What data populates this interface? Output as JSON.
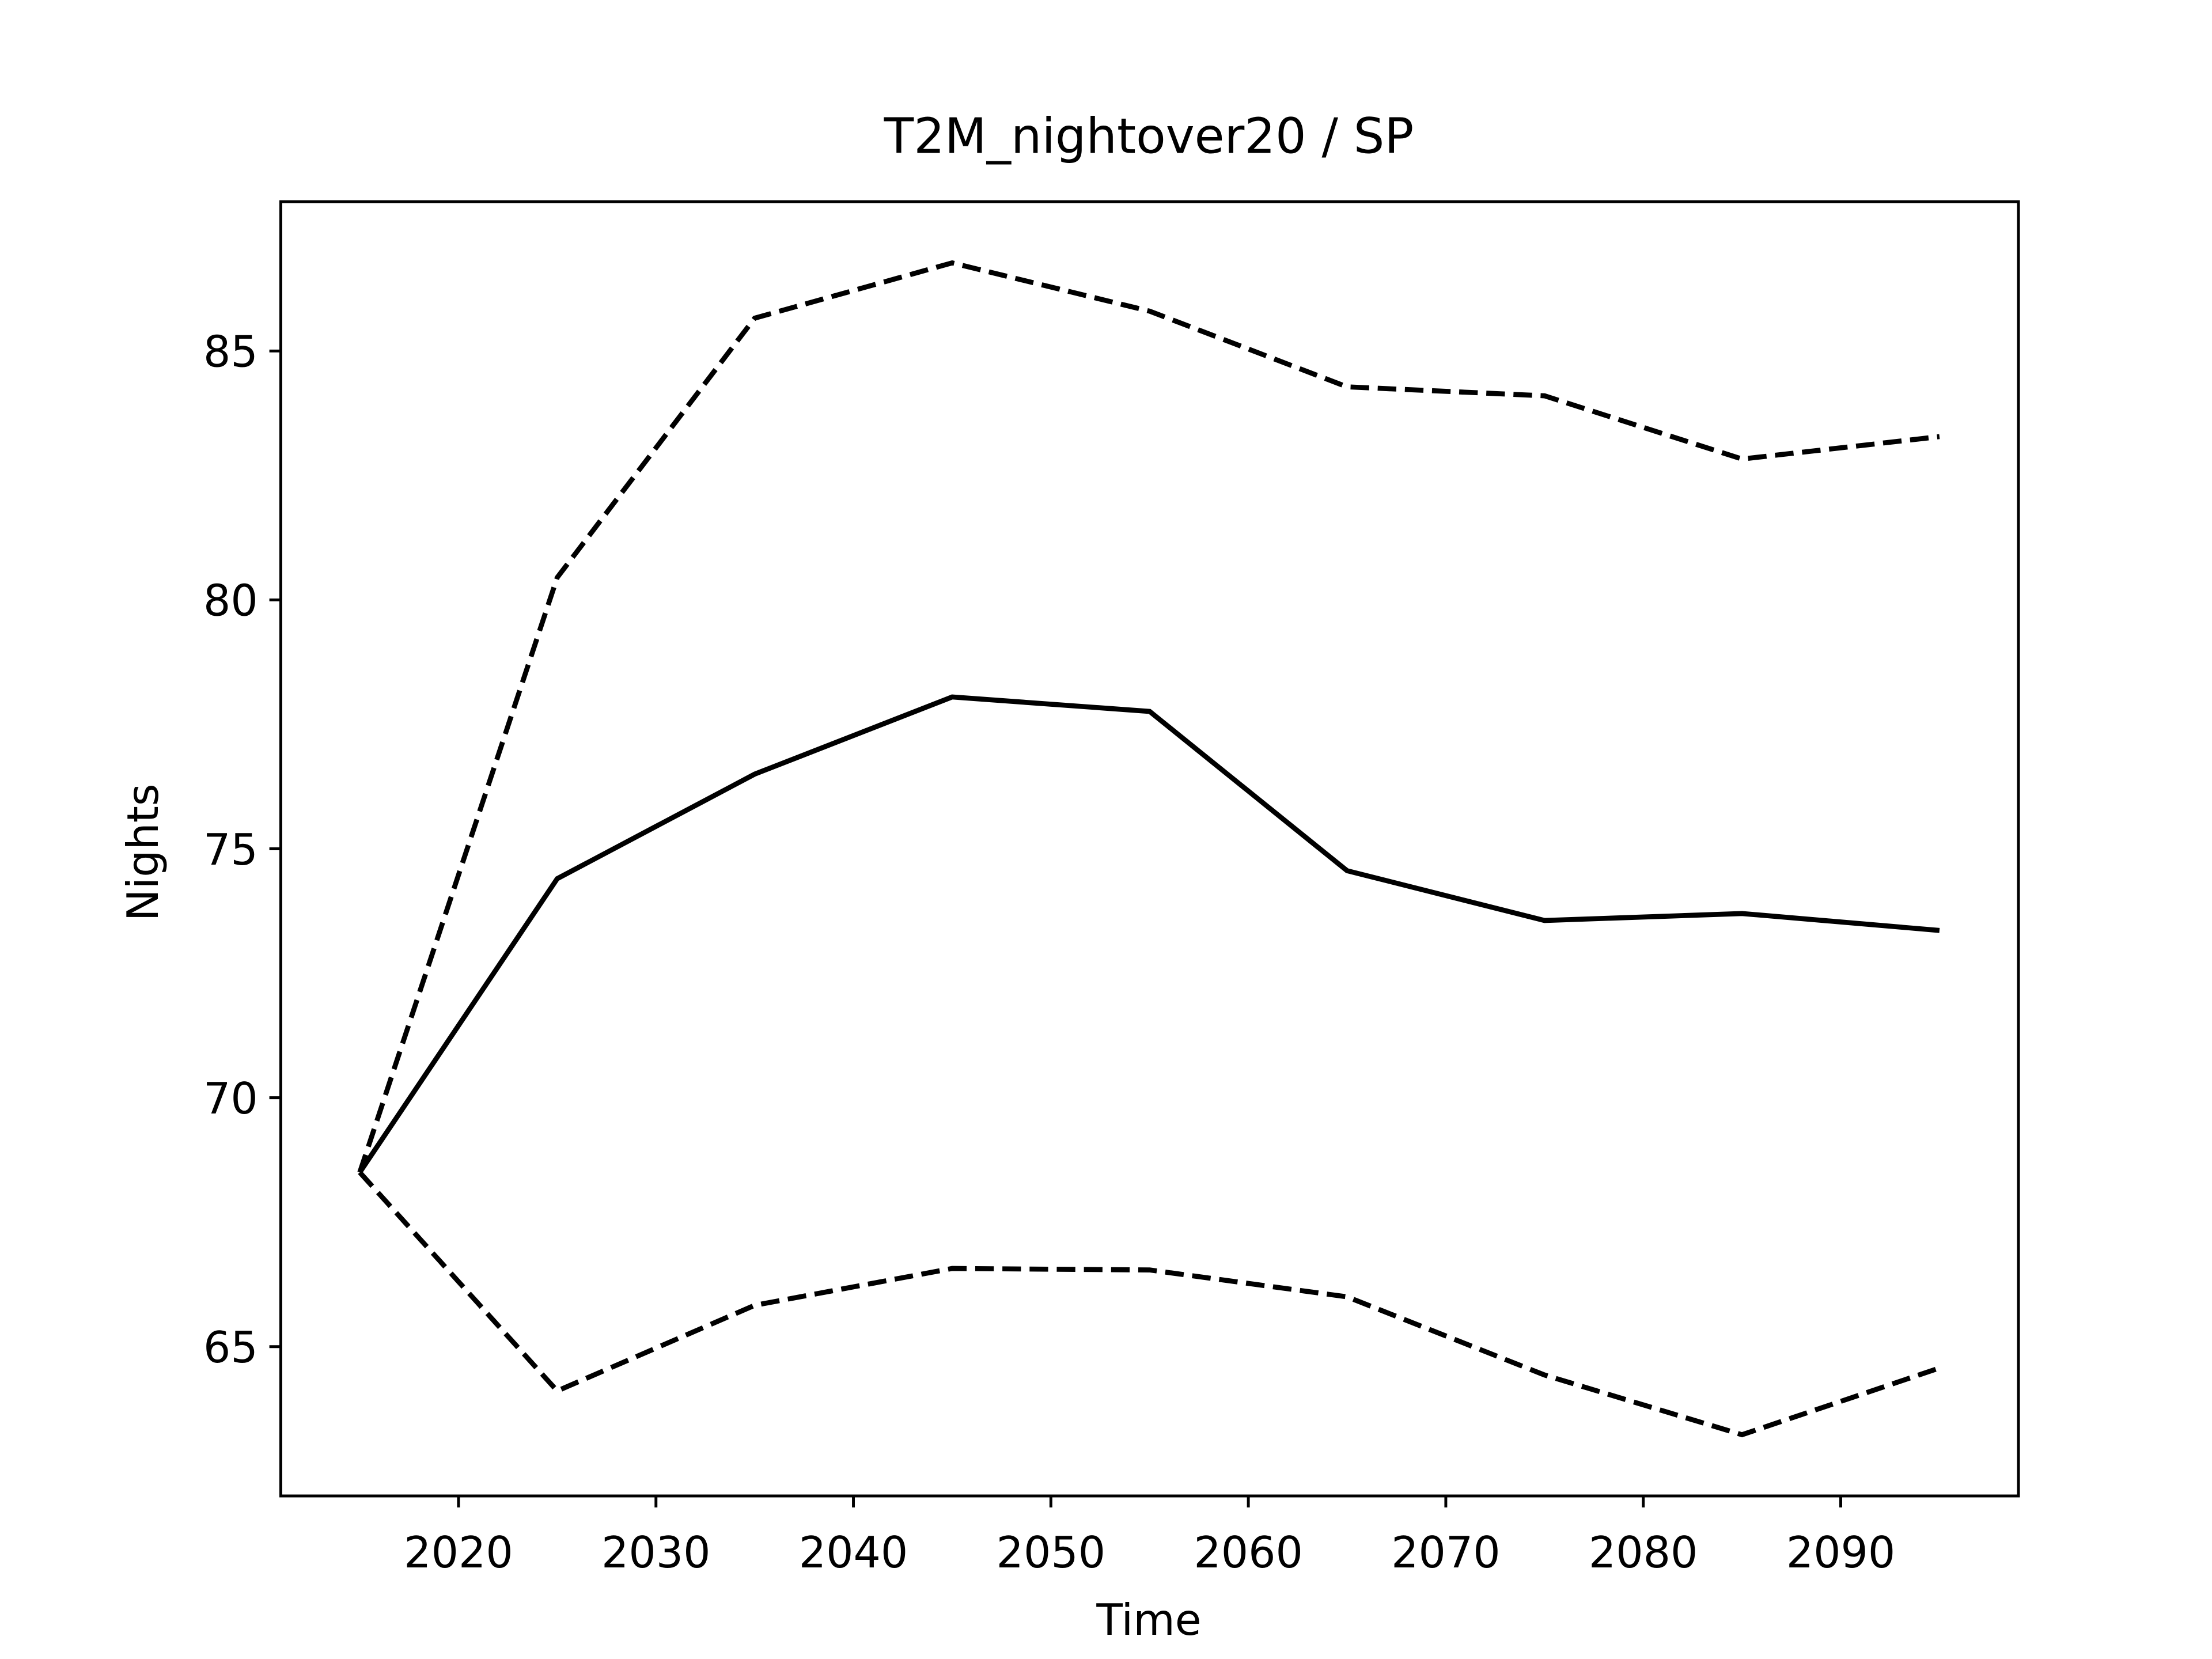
{
  "chart_data": {
    "type": "line",
    "title": "T2M_nightover20 / SP",
    "xlabel": "Time",
    "ylabel": "Nights",
    "x": [
      2015,
      2025,
      2035,
      2045,
      2055,
      2065,
      2075,
      2085,
      2095
    ],
    "series": [
      {
        "color": "#000000",
        "linestyle": "solid",
        "values": [
          68.5,
          74.4,
          76.5,
          78.05,
          77.76,
          74.56,
          73.56,
          73.7,
          73.36
        ]
      },
      {
        "color": "#000000",
        "linestyle": "dashed",
        "values": [
          68.5,
          80.45,
          85.66,
          86.77,
          85.8,
          84.28,
          84.1,
          82.83,
          83.28
        ]
      },
      {
        "color": "#000000",
        "linestyle": "dashed",
        "values": [
          68.5,
          64.11,
          65.83,
          66.57,
          66.54,
          66.0,
          64.43,
          63.23,
          64.57
        ]
      }
    ],
    "xlim": [
      2011,
      2099
    ],
    "ylim": [
      62,
      88
    ],
    "xticks": [
      2020,
      2030,
      2040,
      2050,
      2060,
      2070,
      2080,
      2090
    ],
    "yticks": [
      65,
      70,
      75,
      80,
      85
    ]
  }
}
